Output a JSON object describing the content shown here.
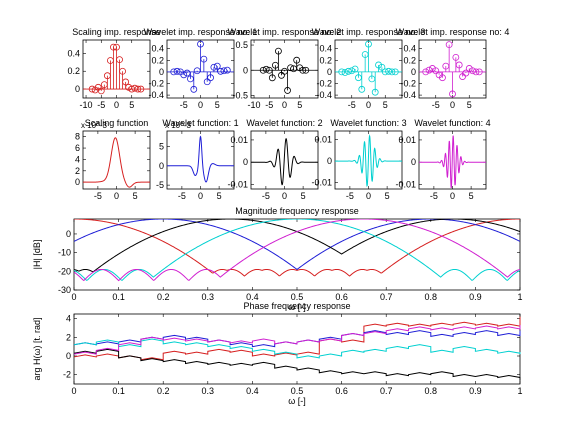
{
  "chart_data": [
    {
      "type": "stem",
      "title": "Scaling imp. response",
      "xticks": [
        -10,
        -5,
        0,
        5
      ],
      "yticks": [
        0,
        0.2,
        0.4
      ],
      "xlim": [
        -11,
        11
      ],
      "ylim": [
        -0.1,
        0.55
      ],
      "color": "#d62020",
      "x": [
        -8,
        -7,
        -6,
        -5,
        -4,
        -3,
        -2,
        -1,
        0,
        1,
        2,
        3,
        4,
        5,
        6,
        7,
        8
      ],
      "y": [
        0.0,
        -0.01,
        0.02,
        -0.02,
        0.05,
        0.15,
        0.32,
        0.47,
        0.47,
        0.33,
        0.2,
        0.08,
        0.02,
        0.0,
        0.01,
        0.0,
        0.0
      ]
    },
    {
      "type": "stem",
      "title": "Wavelet imp. response no: 1",
      "xticks": [
        -5,
        0,
        5
      ],
      "yticks": [
        -0.4,
        -0.2,
        0,
        0.2,
        0.4
      ],
      "xlim": [
        -10,
        10
      ],
      "ylim": [
        -0.45,
        0.55
      ],
      "color": "#1f1fd6",
      "x": [
        -8,
        -7,
        -6,
        -5,
        -4,
        -3,
        -2,
        -1,
        0,
        1,
        2,
        3,
        4,
        5,
        6,
        7,
        8
      ],
      "y": [
        0.0,
        0.01,
        0.0,
        -0.05,
        -0.02,
        -0.12,
        -0.3,
        0.02,
        0.48,
        0.22,
        -0.17,
        -0.1,
        0.08,
        0.1,
        0.01,
        0.02,
        0.03
      ]
    },
    {
      "type": "stem",
      "title": "Wavelet imp. response no: 2",
      "xticks": [
        -10,
        -5,
        0,
        5
      ],
      "yticks": [
        -0.5,
        0,
        0.5
      ],
      "xlim": [
        -11,
        11
      ],
      "ylim": [
        -0.55,
        0.6
      ],
      "color": "#000000",
      "x": [
        -7,
        -6,
        -5,
        -4,
        -3,
        -2,
        -1,
        0,
        1,
        2,
        3,
        4,
        5,
        6,
        7
      ],
      "y": [
        0.0,
        0.02,
        0.0,
        -0.15,
        0.1,
        0.38,
        -0.1,
        -0.02,
        -0.4,
        0.05,
        0.03,
        0.2,
        0.05,
        0.0,
        0.0
      ]
    },
    {
      "type": "stem",
      "title": "Wavelet imp. response no: 3",
      "xticks": [
        -5,
        0,
        5
      ],
      "yticks": [
        -0.4,
        -0.2,
        0,
        0.2,
        0.4
      ],
      "xlim": [
        -10,
        10
      ],
      "ylim": [
        -0.45,
        0.55
      ],
      "color": "#00d0d0",
      "x": [
        -8,
        -7,
        -6,
        -5,
        -4,
        -3,
        -2,
        -1,
        0,
        1,
        2,
        3,
        4,
        5,
        6,
        7,
        8
      ],
      "y": [
        0.0,
        -0.01,
        0.01,
        0.02,
        0.05,
        -0.1,
        -0.3,
        0.3,
        0.48,
        -0.12,
        -0.35,
        0.12,
        0.08,
        0.0,
        0.01,
        0.0,
        0.0
      ]
    },
    {
      "type": "stem",
      "title": "Wavelet imp. response no: 4",
      "xticks": [
        -5,
        0,
        5
      ],
      "yticks": [
        -0.4,
        -0.2,
        0,
        0.2,
        0.4
      ],
      "xlim": [
        -10,
        10
      ],
      "ylim": [
        -0.45,
        0.55
      ],
      "color": "#d020d0",
      "x": [
        -8,
        -7,
        -6,
        -5,
        -4,
        -3,
        -2,
        -1,
        0,
        1,
        2,
        3,
        4,
        5,
        6,
        7,
        8
      ],
      "y": [
        0.0,
        0.03,
        0.06,
        0.02,
        -0.05,
        -0.1,
        0.1,
        0.47,
        -0.38,
        0.25,
        0.12,
        -0.08,
        -0.02,
        0.06,
        0.02,
        0.0,
        0.0
      ]
    },
    {
      "type": "line",
      "title": "Scaling function",
      "exponent": "x 10^-3",
      "xticks": [
        -5,
        0,
        5
      ],
      "yticks": [
        0,
        2,
        4,
        6,
        8
      ],
      "xlim": [
        -9,
        9
      ],
      "ylim": [
        -1.2,
        9
      ],
      "color": "#d62020",
      "function": "scaling"
    },
    {
      "type": "line",
      "title": "Wavelet function: 1",
      "exponent": "x 10^-3",
      "xticks": [
        -5,
        0,
        5
      ],
      "yticks": [
        -5,
        0,
        5
      ],
      "xlim": [
        -9,
        9
      ],
      "ylim": [
        -6,
        9
      ],
      "color": "#1f1fd6",
      "function": "w1"
    },
    {
      "type": "line",
      "title": "Wavelet function: 2",
      "xticks": [
        -5,
        0,
        5
      ],
      "yticks": [
        -0.01,
        0,
        0.01
      ],
      "xlim": [
        -9,
        9
      ],
      "ylim": [
        -0.012,
        0.014
      ],
      "color": "#000000",
      "function": "w2"
    },
    {
      "type": "line",
      "title": "Wavelet function: 3",
      "xticks": [
        -5,
        0,
        5
      ],
      "yticks": [
        -0.01,
        0,
        0.01
      ],
      "xlim": [
        -9,
        9
      ],
      "ylim": [
        -0.013,
        0.014
      ],
      "color": "#00d0d0",
      "function": "w3"
    },
    {
      "type": "line",
      "title": "Wavelet function: 4",
      "xticks": [
        -5,
        0,
        5
      ],
      "yticks": [
        -0.01,
        0,
        0.01
      ],
      "xlim": [
        -9,
        9
      ],
      "ylim": [
        -0.012,
        0.014
      ],
      "color": "#d020d0",
      "function": "w4"
    },
    {
      "type": "line",
      "title": "Magnitude frequency response",
      "ylabel": "|H| [dB]",
      "xlabel": "ω [-]",
      "xticks": [
        0,
        0.1,
        0.2,
        0.3,
        0.4,
        0.5,
        0.6,
        0.7,
        0.8,
        0.9,
        1
      ],
      "yticks": [
        -30,
        -20,
        -10,
        0
      ],
      "xlim": [
        0,
        1
      ],
      "ylim": [
        -30,
        8
      ],
      "series": [
        {
          "color": "#d62020",
          "center": 0.0,
          "mirror": [
            0.0,
            1.0
          ]
        },
        {
          "color": "#1f1fd6",
          "center": 0.2,
          "mirror": [
            0.2,
            0.8
          ]
        },
        {
          "color": "#000000",
          "center": 0.35,
          "mirror": [
            0.35,
            0.85
          ]
        },
        {
          "color": "#00d0d0",
          "center": 0.5,
          "mirror": [
            0.5
          ]
        },
        {
          "color": "#d020d0",
          "center": 0.65,
          "mirror": [
            0.65
          ]
        }
      ]
    },
    {
      "type": "line",
      "title": "Phase frequency response",
      "ylabel": "arg H(ω) [t. rad]",
      "xlabel": "ω [-]",
      "xticks": [
        0,
        0.1,
        0.2,
        0.3,
        0.4,
        0.5,
        0.6,
        0.7,
        0.8,
        0.9,
        1
      ],
      "yticks": [
        -2,
        0,
        2,
        4
      ],
      "xlim": [
        0,
        1
      ],
      "ylim": [
        -3,
        4.5
      ],
      "series": [
        {
          "color": "#d62020",
          "values": [
            -0.1,
            0.0,
            -0.2,
            -0.4,
            0.3,
            0.2,
            0.5,
            0.4,
            0.0,
            0.1,
            0.2,
            1.6,
            1.5,
            3.2,
            3.3,
            3.2,
            3.3,
            3.4,
            3.3,
            3.2,
            4.0
          ]
        },
        {
          "color": "#1f1fd6",
          "values": [
            1.2,
            1.3,
            1.5,
            1.8,
            2.0,
            1.8,
            1.5,
            1.2,
            1.0,
            1.3,
            1.5,
            1.8,
            2.2,
            2.5,
            2.3,
            2.5,
            2.1,
            2.3,
            2.5,
            2.2,
            2.5
          ]
        },
        {
          "color": "#000000",
          "values": [
            0.3,
            0.5,
            -0.2,
            -0.5,
            -0.6,
            -0.8,
            -0.9,
            -1.0,
            -0.9,
            -1.3,
            -1.5,
            -1.8,
            -1.9,
            -1.9,
            -2.1,
            -2.0,
            -1.9,
            -2.2,
            -2.2,
            -2.3,
            -2.6
          ]
        },
        {
          "color": "#00d0d0",
          "values": [
            1.2,
            1.5,
            1.0,
            1.6,
            1.3,
            1.2,
            1.0,
            0.8,
            0.5,
            0.2,
            -0.2,
            0.0,
            0.4,
            0.5,
            0.8,
            1.0,
            0.4,
            0.8,
            0.5,
            0.3,
            0.2
          ]
        },
        {
          "color": "#d020d0",
          "values": [
            0.2,
            0.6,
            1.2,
            1.8,
            1.7,
            1.6,
            1.5,
            1.4,
            1.6,
            1.3,
            1.5,
            1.6,
            2.2,
            2.4,
            2.7,
            2.9,
            2.8,
            2.9,
            3.0,
            2.9,
            3.1
          ]
        }
      ]
    }
  ]
}
